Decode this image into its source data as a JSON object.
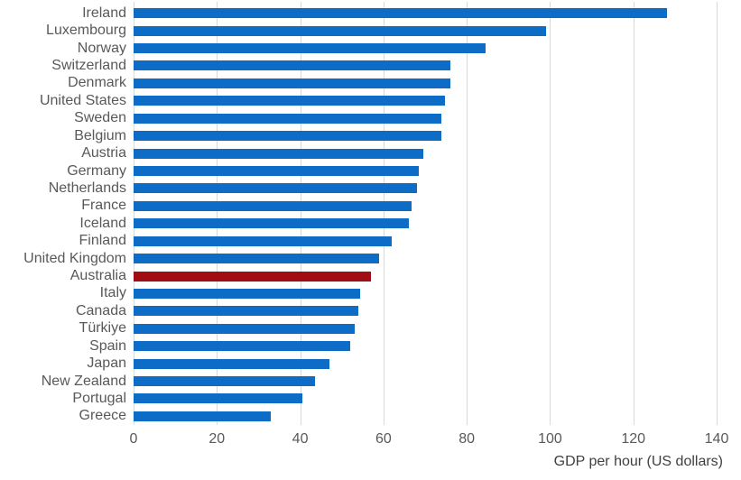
{
  "chart_data": {
    "type": "bar",
    "orientation": "horizontal",
    "title": "",
    "xlabel": "GDP per hour (US dollars)",
    "xlim": [
      0,
      140
    ],
    "xticks": [
      0,
      20,
      40,
      60,
      80,
      100,
      120,
      140
    ],
    "grid": "vertical-gridlines",
    "legend": "none",
    "categories": [
      "Ireland",
      "Luxembourg",
      "Norway",
      "Switzerland",
      "Denmark",
      "United States",
      "Sweden",
      "Belgium",
      "Austria",
      "Germany",
      "Netherlands",
      "France",
      "Iceland",
      "Finland",
      "United Kingdom",
      "Australia",
      "Italy",
      "Canada",
      "Türkiye",
      "Spain",
      "Japan",
      "New Zealand",
      "Portugal",
      "Greece"
    ],
    "values": [
      128,
      99,
      84.5,
      76,
      76,
      74.8,
      74,
      74,
      69.5,
      68.5,
      68,
      66.7,
      66,
      62,
      59,
      57,
      54.5,
      54,
      53,
      52,
      47,
      43.5,
      40.5,
      33
    ],
    "bar_color": "#0C6CC6",
    "highlight_category": "Australia",
    "highlight_color": "#A00E13",
    "label_color": "#595959",
    "tick_color": "#595959",
    "axis_title_color": "#404040",
    "gridline_color": "#D9D9D9"
  }
}
